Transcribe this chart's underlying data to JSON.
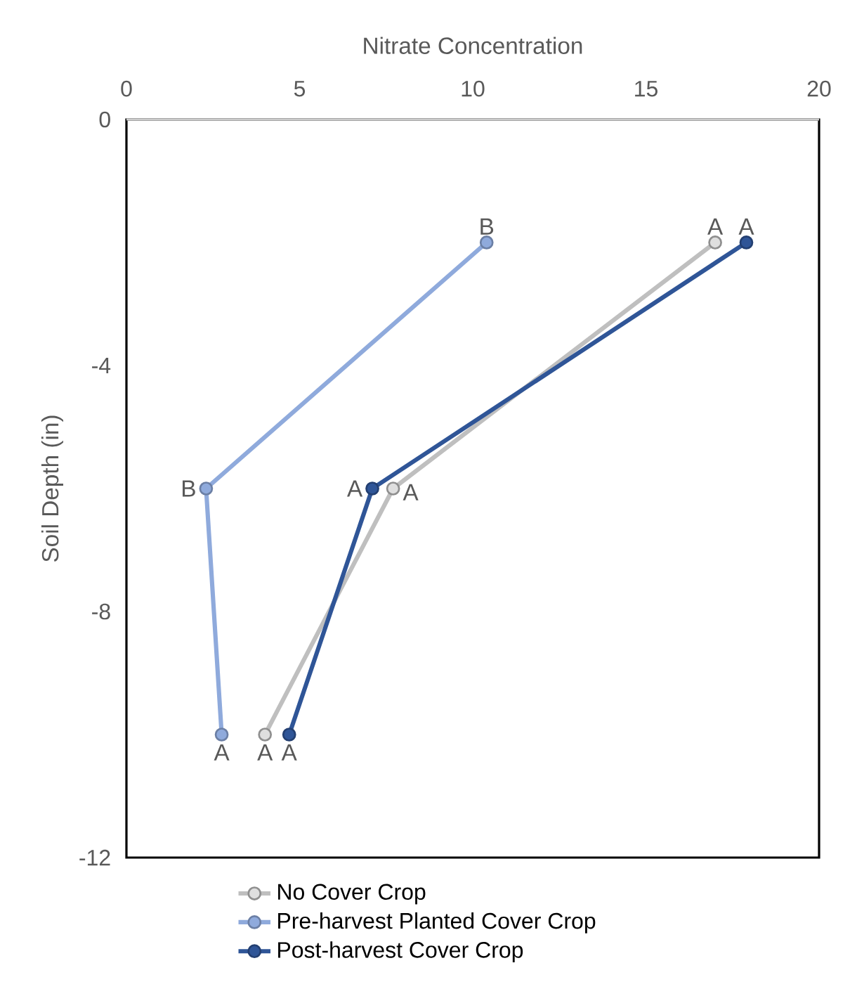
{
  "chart_data": {
    "type": "line",
    "xlabel": "Nitrate Concentration",
    "ylabel": "Soil Depth (in)",
    "xlim": [
      0,
      20
    ],
    "xticks": [
      0,
      5,
      10,
      15,
      20
    ],
    "ylim": [
      -12,
      0
    ],
    "yticks": [
      -12,
      -8,
      -4,
      0
    ],
    "marker": "circle",
    "line_style": "solid",
    "grid": false,
    "legend": "bottom",
    "series": [
      {
        "name": "No Cover Crop",
        "color": "#bfbfbf",
        "x": [
          17.0,
          7.7,
          4.0
        ],
        "values": [
          -2,
          -6,
          -10
        ]
      },
      {
        "name": "Pre-harvest Planted Cover Crop",
        "color": "#8faadc",
        "x": [
          10.4,
          2.3,
          2.75
        ],
        "values": [
          -2,
          -6,
          -10
        ]
      },
      {
        "name": "Post-harvest Cover Crop",
        "color": "#2f5597",
        "x": [
          17.9,
          7.1,
          4.7
        ],
        "values": [
          -2,
          -6,
          -10
        ]
      }
    ],
    "annotations": [
      {
        "text": "B",
        "x": 10.4,
        "y": -2
      },
      {
        "text": "A",
        "x": 17.0,
        "y": -2
      },
      {
        "text": "A",
        "x": 17.9,
        "y": -2
      },
      {
        "text": "B",
        "x": 2.3,
        "y": -6
      },
      {
        "text": "A",
        "x": 7.1,
        "y": -6
      },
      {
        "text": "A",
        "x": 7.7,
        "y": -6
      },
      {
        "text": "A",
        "x": 2.75,
        "y": -10
      },
      {
        "text": "A",
        "x": 4.0,
        "y": -10
      },
      {
        "text": "A",
        "x": 4.7,
        "y": -10
      }
    ]
  }
}
